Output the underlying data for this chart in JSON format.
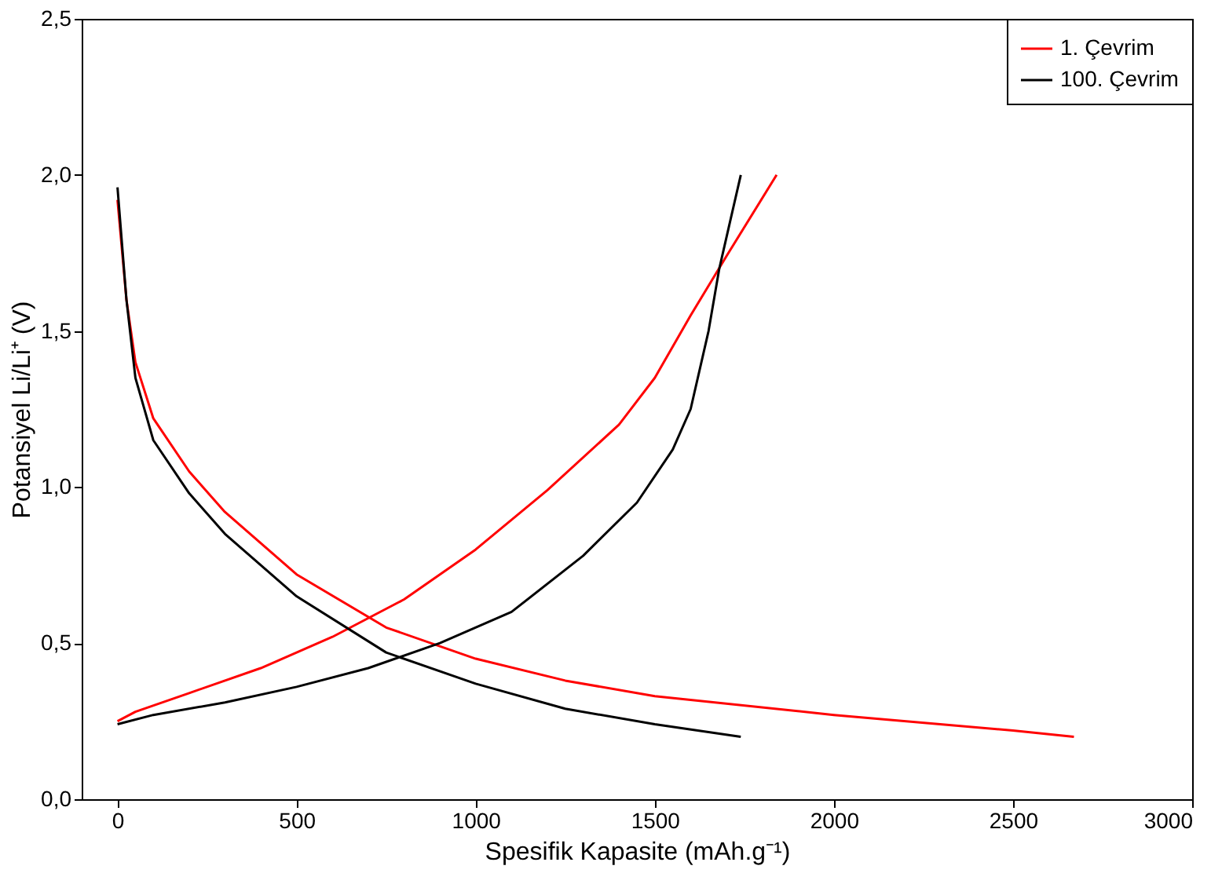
{
  "chart_data": {
    "type": "line",
    "xlabel": "Spesifik Kapasite (mAh.g⁻¹)",
    "ylabel": "Potansiyel Li/Li⁺ (V)",
    "xlim": [
      -100,
      3000
    ],
    "xticks": [
      0,
      500,
      1000,
      1500,
      2000,
      2500,
      3000
    ],
    "ylim": [
      0,
      2.5
    ],
    "yticks": [
      {
        "value": 0,
        "label": "0,0"
      },
      {
        "value": 0.5,
        "label": "0,5"
      },
      {
        "value": 1,
        "label": "1,0"
      },
      {
        "value": 1.5,
        "label": "1,5"
      },
      {
        "value": 2,
        "label": "2,0"
      },
      {
        "value": 2.5,
        "label": "2,5"
      }
    ],
    "grid": false,
    "legend": "top right",
    "line_style": "solid",
    "marker": "none",
    "series": [
      {
        "name": "1. Çevrim",
        "color": "#ff0000",
        "x": [
          0,
          25,
          50,
          100,
          200,
          300,
          500,
          750,
          1000,
          1250,
          1500,
          2000,
          2500,
          2670,
          null,
          0,
          50,
          200,
          400,
          600,
          800,
          1000,
          1200,
          1400,
          1500,
          1600,
          1700,
          1840
        ],
        "values": [
          1.92,
          1.6,
          1.4,
          1.22,
          1.05,
          0.92,
          0.72,
          0.55,
          0.45,
          0.38,
          0.33,
          0.27,
          0.22,
          0.2,
          null,
          0.25,
          0.28,
          0.34,
          0.42,
          0.52,
          0.64,
          0.8,
          0.99,
          1.2,
          1.35,
          1.55,
          1.74,
          2.0
        ]
      },
      {
        "name": "100. Çevrim",
        "color": "#000000",
        "x": [
          0,
          25,
          50,
          100,
          200,
          300,
          500,
          750,
          1000,
          1250,
          1500,
          1740,
          null,
          0,
          100,
          300,
          500,
          700,
          900,
          1100,
          1300,
          1450,
          1550,
          1600,
          1650,
          1680,
          1710,
          1740
        ],
        "values": [
          1.96,
          1.6,
          1.35,
          1.15,
          0.98,
          0.85,
          0.65,
          0.47,
          0.37,
          0.29,
          0.24,
          0.2,
          null,
          0.24,
          0.27,
          0.31,
          0.36,
          0.42,
          0.5,
          0.6,
          0.78,
          0.95,
          1.12,
          1.25,
          1.5,
          1.7,
          1.85,
          2.0
        ]
      }
    ]
  }
}
